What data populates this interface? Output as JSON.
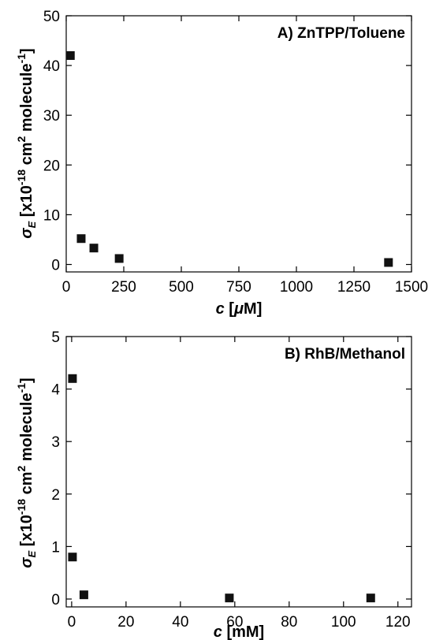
{
  "chart_data": [
    {
      "type": "scatter",
      "panel_label": "A) ZnTPP/Toluene",
      "xlabel": {
        "var": "c",
        "unit_open": " [",
        "unit_greek": "μ",
        "unit_rest": "M]"
      },
      "ylabel": {
        "sym": "σ",
        "sub": "E",
        "p1": " [x10",
        "sup1": "-18",
        "p2": " cm",
        "sup2": "2",
        "p3": " molecule",
        "sup3": "-1",
        "p4": "]"
      },
      "xlim": [
        0,
        1500
      ],
      "ylim": [
        -1.5,
        50
      ],
      "xticks": [
        "0",
        "250",
        "500",
        "750",
        "1000",
        "1250",
        "1500"
      ],
      "yticks": [
        "0",
        "10",
        "20",
        "30",
        "40",
        "50"
      ],
      "points": [
        {
          "x": 18,
          "y": 42
        },
        {
          "x": 65,
          "y": 5.2
        },
        {
          "x": 120,
          "y": 3.3
        },
        {
          "x": 230,
          "y": 1.2
        },
        {
          "x": 1400,
          "y": 0.4
        }
      ]
    },
    {
      "type": "scatter",
      "panel_label": "B) RhB/Methanol",
      "xlabel": {
        "var": "c",
        "unit_open": " [",
        "unit_greek": "",
        "unit_rest": "mM]"
      },
      "ylabel": {
        "sym": "σ",
        "sub": "E",
        "p1": " [x10",
        "sup1": "-18",
        "p2": " cm",
        "sup2": "2",
        "p3": " molecule",
        "sup3": "-1",
        "p4": "]"
      },
      "xlim": [
        -2,
        125
      ],
      "ylim": [
        -0.15,
        5
      ],
      "xticks": [
        "0",
        "20",
        "40",
        "60",
        "80",
        "100",
        "120"
      ],
      "yticks": [
        "0",
        "1",
        "2",
        "3",
        "4",
        "5"
      ],
      "points": [
        {
          "x": 0.3,
          "y": 4.2
        },
        {
          "x": 0.3,
          "y": 0.8
        },
        {
          "x": 4.5,
          "y": 0.08
        },
        {
          "x": 58,
          "y": 0.02
        },
        {
          "x": 110,
          "y": 0.02
        }
      ]
    }
  ]
}
